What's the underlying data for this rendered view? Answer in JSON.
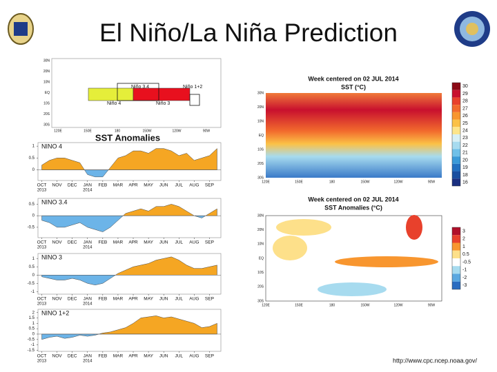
{
  "title": "El Niño/La Niña Prediction",
  "url": "http://www.cpc.ncep.noaa.gov/",
  "region_map": {
    "lat_labels": [
      "30N",
      "20N",
      "10N",
      "EQ",
      "10S",
      "20S",
      "30S"
    ],
    "lon_labels": [
      "120E",
      "150E",
      "180",
      "150W",
      "120W",
      "90W"
    ],
    "regions": [
      "Niño 3.4",
      "Niño 1+2",
      "Niño 4",
      "Niño 3"
    ],
    "caption": "SST Anomalies"
  },
  "chart_data": [
    {
      "type": "area",
      "title": "NINO 4",
      "categories": [
        "OCT",
        null,
        "NOV",
        null,
        "DEC",
        null,
        "JAN",
        null,
        "FEB",
        null,
        "MAR",
        null,
        "APR",
        null,
        "MAY",
        null,
        "JUN",
        null,
        "JUL",
        null,
        "AUG",
        null,
        "SEP",
        null
      ],
      "sublabels": [
        "2013",
        null,
        null,
        null,
        null,
        null,
        "2014",
        null,
        null,
        null,
        null,
        null,
        null,
        null,
        null,
        null,
        null,
        null,
        null,
        null,
        null,
        null,
        null,
        null
      ],
      "values": [
        0.2,
        0.4,
        0.5,
        0.5,
        0.4,
        0.3,
        -0.2,
        -0.3,
        -0.3,
        0.1,
        0.5,
        0.6,
        0.8,
        0.8,
        0.7,
        0.9,
        0.9,
        0.8,
        0.6,
        0.7,
        0.4,
        0.5,
        0.6,
        0.9
      ],
      "positive_color": "#f5a623",
      "negative_color": "#6cb4e8",
      "ylim": [
        -0.45,
        1.15
      ],
      "yticks": [
        0,
        0.5,
        1
      ]
    },
    {
      "type": "area",
      "title": "NINO 3.4",
      "categories": [
        "OCT",
        null,
        "NOV",
        null,
        "DEC",
        null,
        "JAN",
        null,
        "FEB",
        null,
        "MAR",
        null,
        "APR",
        null,
        "MAY",
        null,
        "JUN",
        null,
        "JUL",
        null,
        "AUG",
        null,
        "SEP",
        null
      ],
      "sublabels": [
        "2013",
        null,
        null,
        null,
        null,
        null,
        "2014",
        null,
        null,
        null,
        null,
        null,
        null,
        null,
        null,
        null,
        null,
        null,
        null,
        null,
        null,
        null,
        null,
        null
      ],
      "values": [
        -0.2,
        -0.3,
        -0.5,
        -0.5,
        -0.4,
        -0.3,
        -0.5,
        -0.6,
        -0.7,
        -0.5,
        -0.2,
        0.1,
        0.2,
        0.3,
        0.2,
        0.4,
        0.4,
        0.5,
        0.4,
        0.2,
        0,
        -0.1,
        0.1,
        0.3
      ],
      "positive_color": "#f5a623",
      "negative_color": "#6cb4e8",
      "ylim": [
        -0.95,
        0.75
      ],
      "yticks": [
        0.5,
        0,
        -0.5
      ]
    },
    {
      "type": "area",
      "title": "NINO 3",
      "categories": [
        "OCT",
        null,
        "NOV",
        null,
        "DEC",
        null,
        "JAN",
        null,
        "FEB",
        null,
        "MAR",
        null,
        "APR",
        null,
        "MAY",
        null,
        "JUN",
        null,
        "JUL",
        null,
        "AUG",
        null,
        "SEP",
        null
      ],
      "sublabels": [
        "2013",
        null,
        null,
        null,
        null,
        null,
        "2014",
        null,
        null,
        null,
        null,
        null,
        null,
        null,
        null,
        null,
        null,
        null,
        null,
        null,
        null,
        null,
        null,
        null
      ],
      "values": [
        -0.1,
        -0.2,
        -0.3,
        -0.3,
        -0.2,
        -0.3,
        -0.5,
        -0.6,
        -0.5,
        -0.2,
        0.1,
        0.3,
        0.5,
        0.6,
        0.7,
        0.9,
        1.0,
        1.1,
        0.9,
        0.6,
        0.4,
        0.4,
        0.5,
        0.6
      ],
      "positive_color": "#f5a623",
      "negative_color": "#6cb4e8",
      "ylim": [
        -1.15,
        1.3
      ],
      "yticks": [
        1,
        0.5,
        0,
        -0.5,
        -1
      ]
    },
    {
      "type": "area",
      "title": "NINO 1+2",
      "categories": [
        "OCT",
        null,
        "NOV",
        null,
        "DEC",
        null,
        "JAN",
        null,
        "FEB",
        null,
        "MAR",
        null,
        "APR",
        null,
        "MAY",
        null,
        "JUN",
        null,
        "JUL",
        null,
        "AUG",
        null,
        "SEP",
        null
      ],
      "sublabels": [
        "2013",
        null,
        null,
        null,
        null,
        null,
        "2014",
        null,
        null,
        null,
        null,
        null,
        null,
        null,
        null,
        null,
        null,
        null,
        null,
        null,
        null,
        null,
        null,
        null
      ],
      "values": [
        -0.5,
        -0.3,
        -0.2,
        -0.4,
        -0.3,
        -0.1,
        -0.2,
        -0.1,
        0.1,
        0.2,
        0.4,
        0.6,
        1.0,
        1.5,
        1.6,
        1.7,
        1.5,
        1.6,
        1.4,
        1.2,
        1.0,
        0.6,
        0.7,
        1.0
      ],
      "positive_color": "#f5a623",
      "negative_color": "#6cb4e8",
      "ylim": [
        -1.6,
        2.3
      ],
      "yticks": [
        2,
        1.5,
        1,
        0.5,
        0,
        -0.5,
        -1,
        -1.5
      ]
    }
  ],
  "maps": [
    {
      "title": "Week centered on 02 JUL 2014",
      "subtitle": "SST (°C)",
      "lat_labels": [
        "30N",
        "20N",
        "10N",
        "EQ",
        "10S",
        "20S",
        "30S"
      ],
      "lon_labels": [
        "120E",
        "150E",
        "180",
        "150W",
        "120W",
        "90W"
      ],
      "colorbar": {
        "ticks": [
          30,
          29,
          28,
          27,
          26,
          25,
          24,
          23,
          22,
          21,
          20,
          19,
          18,
          16
        ],
        "colors": [
          "#8b0a16",
          "#c8102e",
          "#e8412c",
          "#f26b2d",
          "#f8962f",
          "#fbc146",
          "#fde58a",
          "#d8f0f5",
          "#a7dbef",
          "#6fc0e8",
          "#3a9ad8",
          "#2170c0",
          "#1a4fa0",
          "#1a2f80"
        ]
      }
    },
    {
      "title": "Week centered on 02 JUL 2014",
      "subtitle": "SST Anomalies (°C)",
      "lat_labels": [
        "30N",
        "20N",
        "10N",
        "EQ",
        "10S",
        "20S",
        "30S"
      ],
      "lon_labels": [
        "120E",
        "150E",
        "180",
        "150W",
        "120W",
        "90W"
      ],
      "colorbar": {
        "ticks": [
          3,
          2,
          1,
          0.5,
          -0.5,
          -1,
          -2,
          -3
        ],
        "colors": [
          "#b0102a",
          "#e8412c",
          "#f8962f",
          "#fde08a",
          "#ffffff",
          "#a7dbef",
          "#5aa8e0",
          "#2a6cc0"
        ]
      }
    }
  ]
}
